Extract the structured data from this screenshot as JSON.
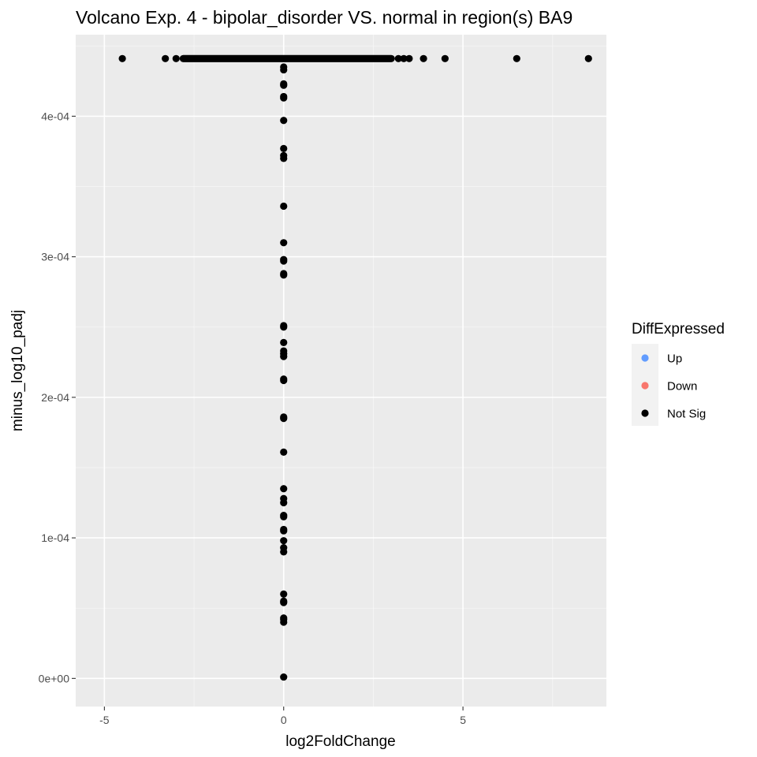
{
  "chart_data": {
    "type": "scatter",
    "title": "Volcano Exp. 4 - bipolar_disorder VS. normal in region(s) BA9",
    "xlabel": "log2FoldChange",
    "ylabel": "minus_log10_padj",
    "xlim": [
      -5.8,
      9.0
    ],
    "ylim": [
      -2e-05,
      0.000458
    ],
    "x_ticks": [
      -5,
      0,
      5
    ],
    "x_tick_labels": [
      "-5",
      "0",
      "5"
    ],
    "y_ticks": [
      0,
      0.0001,
      0.0002,
      0.0003,
      0.0004
    ],
    "y_tick_labels": [
      "0e+00",
      "1e-04",
      "2e-04",
      "3e-04",
      "4e-04"
    ],
    "grid": true,
    "legend": {
      "title": "DiffExpressed",
      "placement": "right",
      "entries": [
        {
          "label": "Up",
          "color": "#619CFF"
        },
        {
          "label": "Down",
          "color": "#F8766D"
        },
        {
          "label": "Not Sig",
          "color": "#000000"
        }
      ]
    },
    "top_row_y": 0.000441,
    "top_row_x_range": [
      -2.8,
      3.0
    ],
    "top_row_x_outliers": [
      -4.5,
      -3.3,
      -3.0,
      3.2,
      3.35,
      3.5,
      3.9,
      4.5,
      6.5,
      8.5
    ],
    "series": [
      {
        "name": "Not Sig",
        "color": "#000000",
        "x": [
          0,
          0,
          0,
          0,
          0,
          0,
          0,
          0,
          0,
          0,
          0,
          0,
          0,
          0,
          0,
          0,
          0,
          0,
          0,
          0,
          0,
          0,
          0,
          0,
          0,
          0,
          0,
          0,
          0,
          0,
          0,
          0,
          0,
          0,
          0,
          0,
          0,
          0,
          0,
          0,
          0,
          0,
          0,
          0
        ],
        "y": [
          0.000435,
          0.000433,
          0.000423,
          0.000422,
          0.000414,
          0.000413,
          0.000397,
          0.000377,
          0.000372,
          0.00037,
          0.000336,
          0.00031,
          0.000298,
          0.000297,
          0.000288,
          0.000287,
          0.000251,
          0.00025,
          0.000239,
          0.000233,
          0.000231,
          0.000229,
          0.000213,
          0.000212,
          0.000186,
          0.000185,
          0.000161,
          0.000135,
          0.000128,
          0.000125,
          0.000116,
          0.000115,
          0.000106,
          0.000105,
          9.8e-05,
          9.3e-05,
          9e-05,
          6e-05,
          5.5e-05,
          5.4e-05,
          4.3e-05,
          4.2e-05,
          4e-05,
          1e-06
        ]
      }
    ]
  }
}
